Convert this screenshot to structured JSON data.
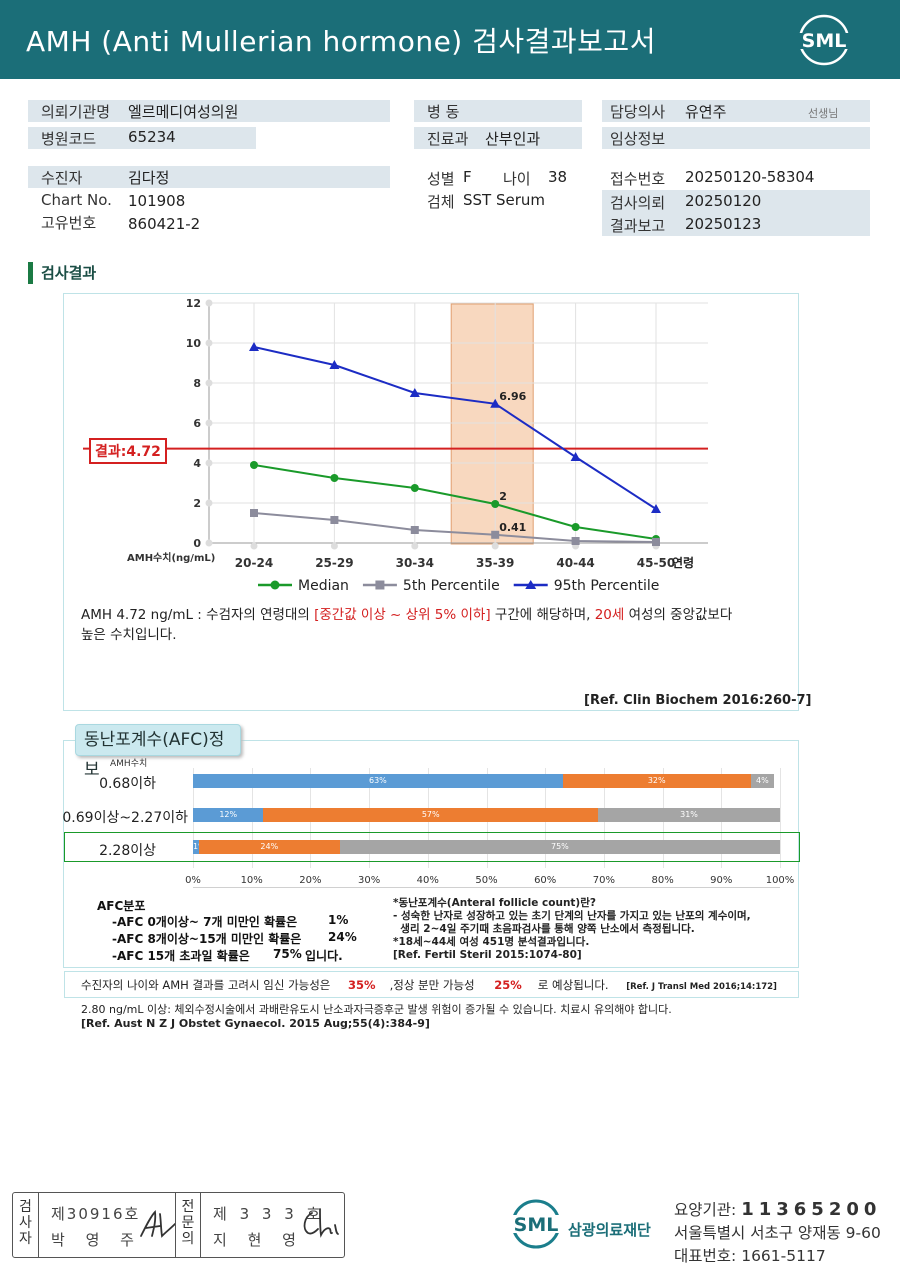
{
  "header": {
    "title": "AMH (Anti Mullerian hormone) 검사결과보고서",
    "logo": "SML"
  },
  "info": {
    "hospital_label": "의뢰기관명",
    "hospital": "엘르메디여성의원",
    "code_label": "병원코드",
    "code": "65234",
    "ward_label": "병   동",
    "ward": "",
    "dept_label": "진료과",
    "dept": "산부인과",
    "doctor_label": "담당의사",
    "doctor": "유연주",
    "doctor_suffix": "선생님",
    "clinical_label": "임상정보",
    "clinical": "",
    "patient_label": "수진자",
    "patient": "김다정",
    "chart_label": "Chart No.",
    "chart": "101908",
    "id_label": "고유번호",
    "id": "860421-2",
    "sex_label": "성별",
    "sex": "F",
    "age_label": "나이",
    "age": "38",
    "specimen_label": "검체",
    "specimen": "SST Serum",
    "receipt_label": "접수번호",
    "receipt": "20250120-58304",
    "request_label": "검사의뢰",
    "request": "20250120",
    "report_label": "결과보고",
    "report": "20250123"
  },
  "section_title": "검사결과",
  "chart_data": {
    "type": "line",
    "categories": [
      "20-24",
      "25-29",
      "30-34",
      "35-39",
      "40-44",
      "45-50"
    ],
    "xlabel": "연령",
    "ylabel": "AMH수치(ng/mL)",
    "ylim": [
      0,
      12
    ],
    "yticks": [
      0,
      2,
      4,
      6,
      8,
      10,
      12
    ],
    "grid": true,
    "legend": "bottom",
    "series": [
      {
        "name": "Median",
        "color": "#1a9a2a",
        "marker": "circle",
        "values": [
          3.9,
          3.25,
          2.75,
          1.95,
          0.8,
          0.2
        ]
      },
      {
        "name": "5th Percentile",
        "color": "#8c8c9c",
        "marker": "square",
        "values": [
          1.5,
          1.15,
          0.65,
          0.41,
          0.1,
          0.05
        ]
      },
      {
        "name": "95th Percentile",
        "color": "#1c2cc4",
        "marker": "triangle",
        "values": [
          9.8,
          8.9,
          7.5,
          6.96,
          4.3,
          1.7
        ]
      }
    ],
    "data_labels": [
      {
        "series": "95th Percentile",
        "category": "35-39",
        "text": "6.96"
      },
      {
        "series": "Median",
        "category": "35-39",
        "text": "2"
      },
      {
        "series": "5th Percentile",
        "category": "35-39",
        "text": "0.41"
      }
    ],
    "highlight_category": "35-39",
    "highlight_color": "#f8d8bf",
    "result_value": 4.72,
    "result_label": "결과:4.72",
    "result_color": "#d42020"
  },
  "desc": {
    "p1": "AMH  4.72 ng/mL : 수검자의 연령대의 ",
    "p2": "[중간값 이상 ~ 상위 5% 이하]",
    "p3": "  구간에 해당하며, ",
    "p4": "20세",
    "p5": " 여성의 중앙값보다",
    "p6": "높은 수치입니다."
  },
  "ref1": "[Ref. Clin Biochem 2016:260-7]",
  "afc": {
    "title": "동난포계수(AFC)정보",
    "col_label": "AMH수치",
    "colors": [
      "#5b9bd5",
      "#ed7d31",
      "#a5a5a5"
    ],
    "rows": [
      {
        "label": "0.68이하",
        "segs": [
          63,
          32,
          4
        ],
        "texts": [
          "63%",
          "32%",
          "4%"
        ]
      },
      {
        "label": "0.69이상~2.27이하",
        "segs": [
          12,
          57,
          31
        ],
        "texts": [
          "12%",
          "57%",
          "31%"
        ]
      },
      {
        "label": "2.28이상",
        "segs": [
          1,
          24,
          75
        ],
        "texts": [
          "1%",
          "24%",
          "75%"
        ]
      }
    ],
    "xticks": [
      "0%",
      "10%",
      "20%",
      "30%",
      "40%",
      "50%",
      "60%",
      "70%",
      "80%",
      "90%",
      "100%"
    ],
    "dist_title": "AFC분포",
    "dist": [
      {
        "text": "-AFC  0개이상~ 7개 미만인 확률은",
        "pct": "1%",
        "tail": ""
      },
      {
        "text": "-AFC  8개이상~15개 미만인 확률은",
        "pct": "24%",
        "tail": ""
      },
      {
        "text": "-AFC  15개 초과일 확률은",
        "pct": "75%",
        "tail": "입니다."
      }
    ],
    "note1": "*동난포계수(Anteral follicle count)란?",
    "note2": "- 성숙한 난자로 성장하고 있는 초기 단계의 난자를 가지고 있는 난포의 계수이며,",
    "note3": "  생리 2~4일 주기때 초음파검사를 통해 양쪽 난소에서 측정됩니다.",
    "note4": "*18세~44세 여성 451명 분석결과입니다.",
    "note5": "[Ref. Fertil Steril 2015:1074-80]"
  },
  "preg": {
    "t1": "수진자의  나이와 AMH 결과를 고려시 임신 가능성은",
    "v1": "35%",
    "t2": ",정상 분만 가능성",
    "v2": "25%",
    "t3": "로 예상됩니다.",
    "ref": "[Ref. J Transl Med 2016;14:172]"
  },
  "warn": {
    "line1": "2.80  ng/mL  이상: 체외수정시술에서  과배란유도시  난소과자극증후군  발생  위험이  증가될  수  있습니다.  치료시  유의해야  합니다.",
    "line2": "[Ref. Aust N Z J Obstet Gynaecol. 2015 Aug;55(4):384-9]"
  },
  "footer": {
    "exam_label": "검사자",
    "exam_no": "제30916호",
    "exam_name": "박 영 주",
    "spec_label": "전문의",
    "spec_no": "제 3 3 3 호",
    "spec_name": "지 현 영",
    "org_name": "삼광의료재단",
    "org_logo": "SML",
    "code_label": "요양기관: ",
    "code": "11365200",
    "address": "서울특별시 서초구 양재동 9-60",
    "phone_label": "대표번호: ",
    "phone": "1661-5117"
  }
}
